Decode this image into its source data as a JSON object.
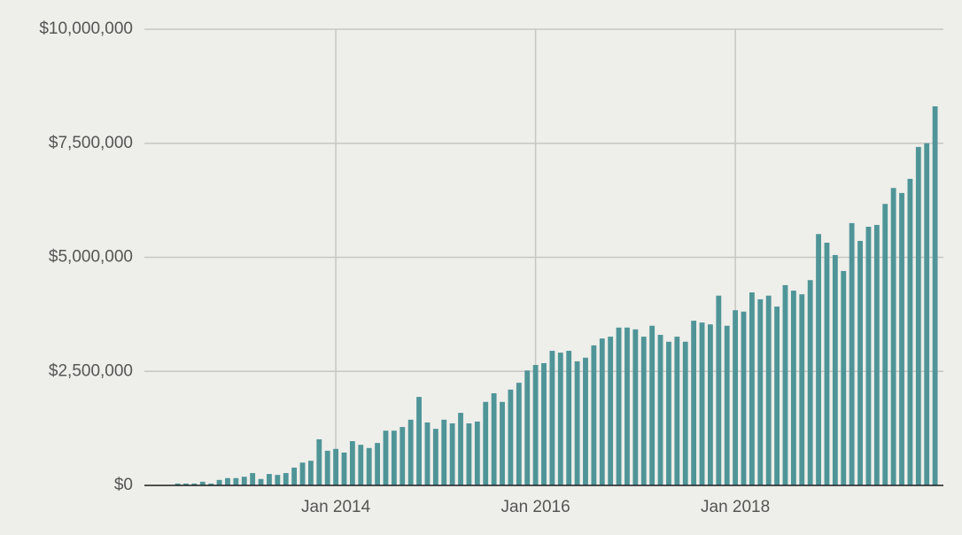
{
  "chart_data": {
    "type": "bar",
    "x": [
      "2012-06",
      "2012-07",
      "2012-08",
      "2012-09",
      "2012-10",
      "2012-11",
      "2012-12",
      "2013-01",
      "2013-02",
      "2013-03",
      "2013-04",
      "2013-05",
      "2013-06",
      "2013-07",
      "2013-08",
      "2013-09",
      "2013-10",
      "2013-11",
      "2013-12",
      "2014-01",
      "2014-02",
      "2014-03",
      "2014-04",
      "2014-05",
      "2014-06",
      "2014-07",
      "2014-08",
      "2014-09",
      "2014-10",
      "2014-11",
      "2014-12",
      "2015-01",
      "2015-02",
      "2015-03",
      "2015-04",
      "2015-05",
      "2015-06",
      "2015-07",
      "2015-08",
      "2015-09",
      "2015-10",
      "2015-11",
      "2015-12",
      "2016-01",
      "2016-02",
      "2016-03",
      "2016-04",
      "2016-05",
      "2016-06",
      "2016-07",
      "2016-08",
      "2016-09",
      "2016-10",
      "2016-11",
      "2016-12",
      "2017-01",
      "2017-02",
      "2017-03",
      "2017-04",
      "2017-05",
      "2017-06",
      "2017-07",
      "2017-08",
      "2017-09",
      "2017-10",
      "2017-11",
      "2017-12",
      "2018-01",
      "2018-02",
      "2018-03",
      "2018-04",
      "2018-05",
      "2018-06",
      "2018-07",
      "2018-08",
      "2018-09",
      "2018-10",
      "2018-11",
      "2018-12",
      "2019-01",
      "2019-02",
      "2019-03",
      "2019-04",
      "2019-05",
      "2019-06",
      "2019-07",
      "2019-08",
      "2019-09",
      "2019-10",
      "2019-11",
      "2019-12",
      "2020-01"
    ],
    "values": [
      40000,
      40000,
      40000,
      80000,
      40000,
      120000,
      160000,
      160000,
      190000,
      270000,
      140000,
      250000,
      230000,
      270000,
      390000,
      500000,
      540000,
      1010000,
      760000,
      800000,
      720000,
      970000,
      890000,
      820000,
      930000,
      1200000,
      1200000,
      1280000,
      1440000,
      1940000,
      1380000,
      1240000,
      1440000,
      1360000,
      1590000,
      1360000,
      1400000,
      1830000,
      2020000,
      1830000,
      2100000,
      2250000,
      2520000,
      2640000,
      2680000,
      2950000,
      2910000,
      2950000,
      2720000,
      2800000,
      3070000,
      3220000,
      3260000,
      3460000,
      3460000,
      3420000,
      3260000,
      3500000,
      3300000,
      3150000,
      3260000,
      3150000,
      3610000,
      3570000,
      3530000,
      4160000,
      3500000,
      3840000,
      3810000,
      4230000,
      4080000,
      4160000,
      3920000,
      4390000,
      4270000,
      4190000,
      4500000,
      5510000,
      5320000,
      5050000,
      4700000,
      5750000,
      5360000,
      5670000,
      5710000,
      6170000,
      6520000,
      6410000,
      6720000,
      7420000,
      7500000,
      8310000
    ],
    "color": "#4f9598",
    "xlim": [
      "2012-02",
      "2020-02"
    ],
    "xticks": [
      {
        "value": "2014-01",
        "label": "Jan 2014"
      },
      {
        "value": "2016-01",
        "label": "Jan 2016"
      },
      {
        "value": "2018-01",
        "label": "Jan 2018"
      }
    ],
    "ylim": [
      0,
      10000000
    ],
    "yticks": [
      {
        "value": 0,
        "label": "$0"
      },
      {
        "value": 2500000,
        "label": "$2,500,000"
      },
      {
        "value": 5000000,
        "label": "$5,000,000"
      },
      {
        "value": 7500000,
        "label": "$7,500,000"
      },
      {
        "value": 10000000,
        "label": "$10,000,000"
      }
    ],
    "grid": true
  }
}
